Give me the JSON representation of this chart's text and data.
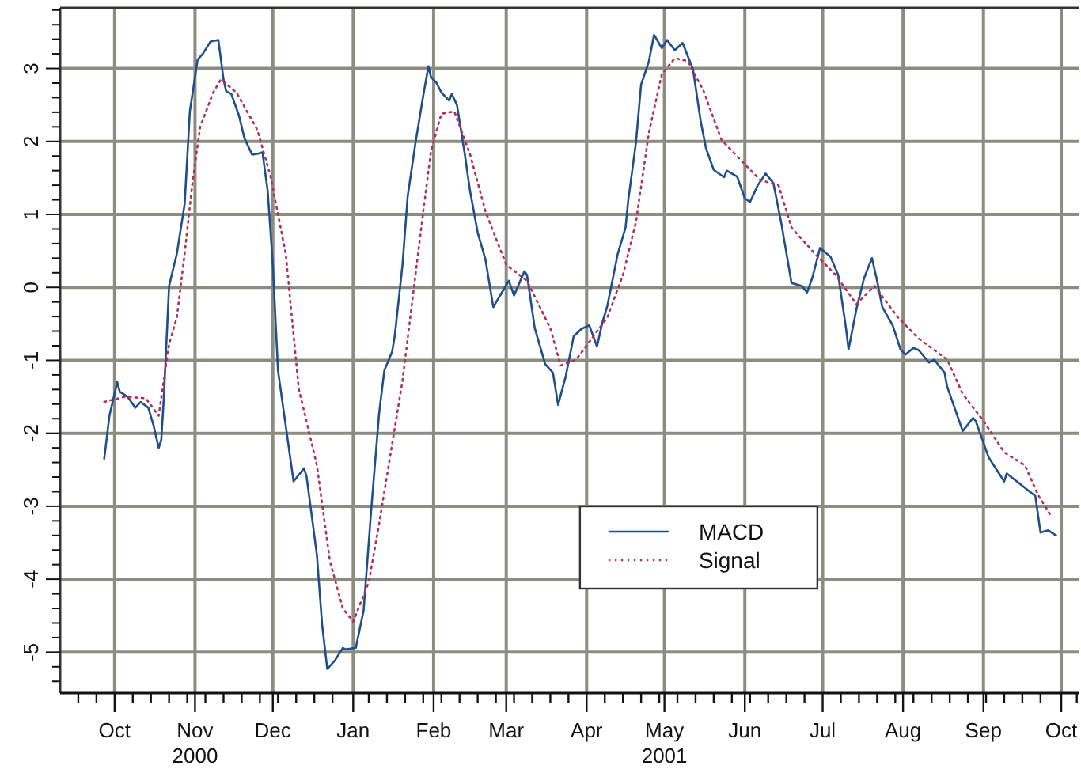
{
  "chart_data": {
    "type": "line",
    "xlim": [
      "2000-09-10",
      "2001-10-08"
    ],
    "xticks": [
      {
        "value": "2000-09-17",
        "label": null
      },
      {
        "value": "2000-09-24",
        "label": null
      },
      {
        "value": "2000-10-01",
        "label": "Oct"
      },
      {
        "value": "2000-10-08",
        "label": null
      },
      {
        "value": "2000-10-15",
        "label": null
      },
      {
        "value": "2000-10-22",
        "label": null
      },
      {
        "value": "2000-10-29",
        "label": null
      },
      {
        "value": "2000-11-01",
        "label": "Nov\n2000"
      },
      {
        "value": "2000-11-05",
        "label": null
      },
      {
        "value": "2000-11-12",
        "label": null
      },
      {
        "value": "2000-11-19",
        "label": null
      },
      {
        "value": "2000-11-26",
        "label": null
      },
      {
        "value": "2000-12-01",
        "label": "Dec"
      },
      {
        "value": "2000-12-03",
        "label": null
      },
      {
        "value": "2000-12-10",
        "label": null
      },
      {
        "value": "2000-12-17",
        "label": null
      },
      {
        "value": "2000-12-24",
        "label": null
      },
      {
        "value": "2001-01-01",
        "label": "Jan"
      },
      {
        "value": "2001-01-07",
        "label": null
      },
      {
        "value": "2001-01-14",
        "label": null
      },
      {
        "value": "2001-01-21",
        "label": null
      },
      {
        "value": "2001-01-28",
        "label": null
      },
      {
        "value": "2001-02-01",
        "label": "Feb"
      },
      {
        "value": "2001-02-04",
        "label": null
      },
      {
        "value": "2001-02-11",
        "label": null
      },
      {
        "value": "2001-02-18",
        "label": null
      },
      {
        "value": "2001-02-25",
        "label": null
      },
      {
        "value": "2001-03-01",
        "label": "Mar"
      },
      {
        "value": "2001-03-04",
        "label": null
      },
      {
        "value": "2001-03-11",
        "label": null
      },
      {
        "value": "2001-03-18",
        "label": null
      },
      {
        "value": "2001-03-25",
        "label": null
      },
      {
        "value": "2001-04-01",
        "label": "Apr"
      },
      {
        "value": "2001-04-08",
        "label": null
      },
      {
        "value": "2001-04-15",
        "label": null
      },
      {
        "value": "2001-04-22",
        "label": null
      },
      {
        "value": "2001-04-29",
        "label": null
      },
      {
        "value": "2001-05-01",
        "label": "May\n2001"
      },
      {
        "value": "2001-05-06",
        "label": null
      },
      {
        "value": "2001-05-13",
        "label": null
      },
      {
        "value": "2001-05-20",
        "label": null
      },
      {
        "value": "2001-05-27",
        "label": null
      },
      {
        "value": "2001-06-01",
        "label": "Jun"
      },
      {
        "value": "2001-06-03",
        "label": null
      },
      {
        "value": "2001-06-10",
        "label": null
      },
      {
        "value": "2001-06-17",
        "label": null
      },
      {
        "value": "2001-06-24",
        "label": null
      },
      {
        "value": "2001-07-01",
        "label": "Jul"
      },
      {
        "value": "2001-07-08",
        "label": null
      },
      {
        "value": "2001-07-15",
        "label": null
      },
      {
        "value": "2001-07-22",
        "label": null
      },
      {
        "value": "2001-07-29",
        "label": null
      },
      {
        "value": "2001-08-01",
        "label": "Aug"
      },
      {
        "value": "2001-08-05",
        "label": null
      },
      {
        "value": "2001-08-12",
        "label": null
      },
      {
        "value": "2001-08-19",
        "label": null
      },
      {
        "value": "2001-08-26",
        "label": null
      },
      {
        "value": "2001-09-01",
        "label": "Sep"
      },
      {
        "value": "2001-09-02",
        "label": null
      },
      {
        "value": "2001-09-09",
        "label": null
      },
      {
        "value": "2001-09-16",
        "label": null
      },
      {
        "value": "2001-09-23",
        "label": null
      },
      {
        "value": "2001-10-01",
        "label": "Oct"
      },
      {
        "value": "2001-10-07",
        "label": null
      }
    ],
    "ylim": [
      -5.56,
      3.83
    ],
    "yticks": [
      {
        "value": -5.4,
        "label": null
      },
      {
        "value": -5.2,
        "label": null
      },
      -5,
      {
        "value": -4.8,
        "label": null
      },
      {
        "value": -4.6,
        "label": null
      },
      {
        "value": -4.4,
        "label": null
      },
      {
        "value": -4.2,
        "label": null
      },
      -4,
      {
        "value": -3.8,
        "label": null
      },
      {
        "value": -3.6,
        "label": null
      },
      {
        "value": -3.4,
        "label": null
      },
      {
        "value": -3.2,
        "label": null
      },
      -3,
      {
        "value": -2.8,
        "label": null
      },
      {
        "value": -2.6,
        "label": null
      },
      {
        "value": -2.4,
        "label": null
      },
      {
        "value": -2.2,
        "label": null
      },
      -2,
      {
        "value": -1.8,
        "label": null
      },
      {
        "value": -1.6,
        "label": null
      },
      {
        "value": -1.4,
        "label": null
      },
      {
        "value": -1.2,
        "label": null
      },
      -1,
      {
        "value": -0.8,
        "label": null
      },
      {
        "value": -0.6,
        "label": null
      },
      {
        "value": -0.4,
        "label": null
      },
      {
        "value": -0.2,
        "label": null
      },
      0,
      {
        "value": 0.2,
        "label": null
      },
      {
        "value": 0.4,
        "label": null
      },
      {
        "value": 0.6,
        "label": null
      },
      {
        "value": 0.8,
        "label": null
      },
      1,
      {
        "value": 1.2,
        "label": null
      },
      {
        "value": 1.4,
        "label": null
      },
      {
        "value": 1.6,
        "label": null
      },
      {
        "value": 1.8,
        "label": null
      },
      2,
      {
        "value": 2.2,
        "label": null
      },
      {
        "value": 2.4,
        "label": null
      },
      {
        "value": 2.6,
        "label": null
      },
      {
        "value": 2.8,
        "label": null
      },
      3,
      {
        "value": 3.2,
        "label": null
      },
      {
        "value": 3.4,
        "label": null
      },
      {
        "value": 3.6,
        "label": null
      },
      {
        "value": 3.8,
        "label": null
      }
    ],
    "grid": true,
    "legend": "bottom",
    "series": [
      {
        "name": "MACD",
        "color": "#1f4e8c",
        "line_style": "solid",
        "x": [
          "2000-09-27",
          "2000-09-29",
          "2000-10-02",
          "2000-10-03",
          "2000-10-06",
          "2000-10-09",
          "2000-10-11",
          "2000-10-14",
          "2000-10-16",
          "2000-10-18",
          "2000-10-19",
          "2000-10-20",
          "2000-10-22",
          "2000-10-25",
          "2000-10-28",
          "2000-10-30",
          "2000-11-02",
          "2000-11-04",
          "2000-11-07",
          "2000-11-10",
          "2000-11-12",
          "2000-11-13",
          "2000-11-15",
          "2000-11-18",
          "2000-11-20",
          "2000-11-23",
          "2000-11-25",
          "2000-11-27",
          "2000-11-29",
          "2000-12-01",
          "2000-12-03",
          "2000-12-05",
          "2000-12-09",
          "2000-12-13",
          "2000-12-14",
          "2000-12-18",
          "2000-12-20",
          "2000-12-22",
          "2000-12-25",
          "2000-12-28",
          "2000-12-29",
          "2001-01-02",
          "2001-01-05",
          "2001-01-08",
          "2001-01-11",
          "2001-01-13",
          "2001-01-16",
          "2001-01-17",
          "2001-01-20",
          "2001-01-22",
          "2001-01-25",
          "2001-01-28",
          "2001-01-30",
          "2001-01-31",
          "2001-02-02",
          "2001-02-04",
          "2001-02-07",
          "2001-02-08",
          "2001-02-10",
          "2001-02-13",
          "2001-02-15",
          "2001-02-18",
          "2001-02-21",
          "2001-02-24",
          "2001-02-27",
          "2001-03-02",
          "2001-03-04",
          "2001-03-08",
          "2001-03-09",
          "2001-03-12",
          "2001-03-16",
          "2001-03-19",
          "2001-03-21",
          "2001-03-24",
          "2001-03-27",
          "2001-03-30",
          "2001-04-02",
          "2001-04-05",
          "2001-04-07",
          "2001-04-09",
          "2001-04-13",
          "2001-04-16",
          "2001-04-17",
          "2001-04-20",
          "2001-04-22",
          "2001-04-24",
          "2001-04-25",
          "2001-04-27",
          "2001-04-30",
          "2001-05-02",
          "2001-05-05",
          "2001-05-08",
          "2001-05-12",
          "2001-05-15",
          "2001-05-17",
          "2001-05-20",
          "2001-05-24",
          "2001-05-25",
          "2001-05-29",
          "2001-06-01",
          "2001-06-03",
          "2001-06-06",
          "2001-06-09",
          "2001-06-12",
          "2001-06-15",
          "2001-06-19",
          "2001-06-23",
          "2001-06-25",
          "2001-06-27",
          "2001-06-30",
          "2001-07-04",
          "2001-07-07",
          "2001-07-10",
          "2001-07-11",
          "2001-07-14",
          "2001-07-17",
          "2001-07-20",
          "2001-07-22",
          "2001-07-24",
          "2001-07-28",
          "2001-07-31",
          "2001-08-02",
          "2001-08-05",
          "2001-08-07",
          "2001-08-11",
          "2001-08-13",
          "2001-08-17",
          "2001-08-18",
          "2001-08-24",
          "2001-08-28",
          "2001-08-29",
          "2001-09-03",
          "2001-09-05",
          "2001-09-09",
          "2001-09-10",
          "2001-09-21",
          "2001-09-23",
          "2001-09-26",
          "2001-09-29"
        ],
        "values": [
          -2.35,
          -1.76,
          -1.3,
          -1.43,
          -1.5,
          -1.65,
          -1.57,
          -1.65,
          -1.89,
          -2.2,
          -2.09,
          -1.5,
          0.02,
          0.46,
          1.14,
          2.41,
          3.12,
          3.2,
          3.37,
          3.39,
          2.85,
          2.69,
          2.65,
          2.35,
          2.05,
          1.82,
          1.83,
          1.85,
          1.33,
          0.31,
          -1.14,
          -1.65,
          -2.66,
          -2.48,
          -2.59,
          -3.67,
          -4.62,
          -5.23,
          -5.11,
          -4.94,
          -4.96,
          -4.94,
          -4.43,
          -3.02,
          -1.72,
          -1.14,
          -0.88,
          -0.67,
          0.31,
          1.25,
          1.98,
          2.63,
          3.03,
          2.88,
          2.81,
          2.67,
          2.56,
          2.65,
          2.5,
          1.83,
          1.33,
          0.75,
          0.38,
          -0.27,
          -0.09,
          0.09,
          -0.11,
          0.22,
          0.17,
          -0.56,
          -1.05,
          -1.17,
          -1.61,
          -1.21,
          -0.67,
          -0.57,
          -0.52,
          -0.81,
          -0.49,
          -0.25,
          0.46,
          0.82,
          1.18,
          1.98,
          2.78,
          2.99,
          3.1,
          3.46,
          3.28,
          3.39,
          3.25,
          3.35,
          2.99,
          2.27,
          1.91,
          1.61,
          1.51,
          1.6,
          1.52,
          1.22,
          1.17,
          1.4,
          1.56,
          1.43,
          0.89,
          0.06,
          0.02,
          -0.07,
          0.13,
          0.54,
          0.42,
          0.17,
          -0.56,
          -0.85,
          -0.3,
          0.13,
          0.4,
          0.09,
          -0.27,
          -0.52,
          -0.85,
          -0.92,
          -0.83,
          -0.86,
          -1.03,
          -0.99,
          -1.17,
          -1.36,
          -1.97,
          -1.79,
          -1.83,
          -2.33,
          -2.44,
          -2.66,
          -2.55,
          -2.86,
          -3.36,
          -3.33,
          -3.4
        ]
      },
      {
        "name": "Signal",
        "color": "#b0305a",
        "line_style": "dotted",
        "x": [
          "2000-09-27",
          "2000-10-05",
          "2000-10-13",
          "2000-10-18",
          "2000-10-22",
          "2000-10-25",
          "2000-10-28",
          "2000-10-31",
          "2000-11-03",
          "2000-11-08",
          "2000-11-11",
          "2000-11-17",
          "2000-11-25",
          "2000-11-30",
          "2000-12-06",
          "2000-12-11",
          "2000-12-18",
          "2000-12-23",
          "2000-12-28",
          "2001-01-01",
          "2001-01-07",
          "2001-01-11",
          "2001-01-16",
          "2001-01-20",
          "2001-01-24",
          "2001-01-28",
          "2001-01-31",
          "2001-02-04",
          "2001-02-09",
          "2001-02-15",
          "2001-02-21",
          "2001-03-01",
          "2001-03-09",
          "2001-03-18",
          "2001-03-22",
          "2001-03-28",
          "2001-04-03",
          "2001-04-09",
          "2001-04-15",
          "2001-04-20",
          "2001-04-25",
          "2001-04-30",
          "2001-05-05",
          "2001-05-10",
          "2001-05-16",
          "2001-05-23",
          "2001-05-30",
          "2001-06-07",
          "2001-06-14",
          "2001-06-19",
          "2001-06-28",
          "2001-07-06",
          "2001-07-14",
          "2001-07-21",
          "2001-07-30",
          "2001-08-07",
          "2001-08-18",
          "2001-08-24",
          "2001-09-01",
          "2001-09-09",
          "2001-09-17",
          "2001-09-22",
          "2001-09-27"
        ],
        "values": [
          -1.57,
          -1.5,
          -1.52,
          -1.76,
          -0.78,
          -0.41,
          0.46,
          1.43,
          2.2,
          2.67,
          2.85,
          2.67,
          2.16,
          1.54,
          0.46,
          -1.39,
          -2.44,
          -3.75,
          -4.4,
          -4.58,
          -4.04,
          -3.24,
          -2.15,
          -1.28,
          -0.12,
          1.04,
          1.87,
          2.38,
          2.41,
          1.83,
          1.04,
          0.31,
          0.09,
          -0.56,
          -1.07,
          -0.99,
          -0.7,
          -0.41,
          0.17,
          0.89,
          2.12,
          2.92,
          3.14,
          3.1,
          2.7,
          2.02,
          1.76,
          1.47,
          1.4,
          0.82,
          0.46,
          0.17,
          -0.23,
          0.02,
          -0.41,
          -0.7,
          -0.99,
          -1.46,
          -1.83,
          -2.26,
          -2.44,
          -2.84,
          -3.13
        ]
      }
    ]
  }
}
